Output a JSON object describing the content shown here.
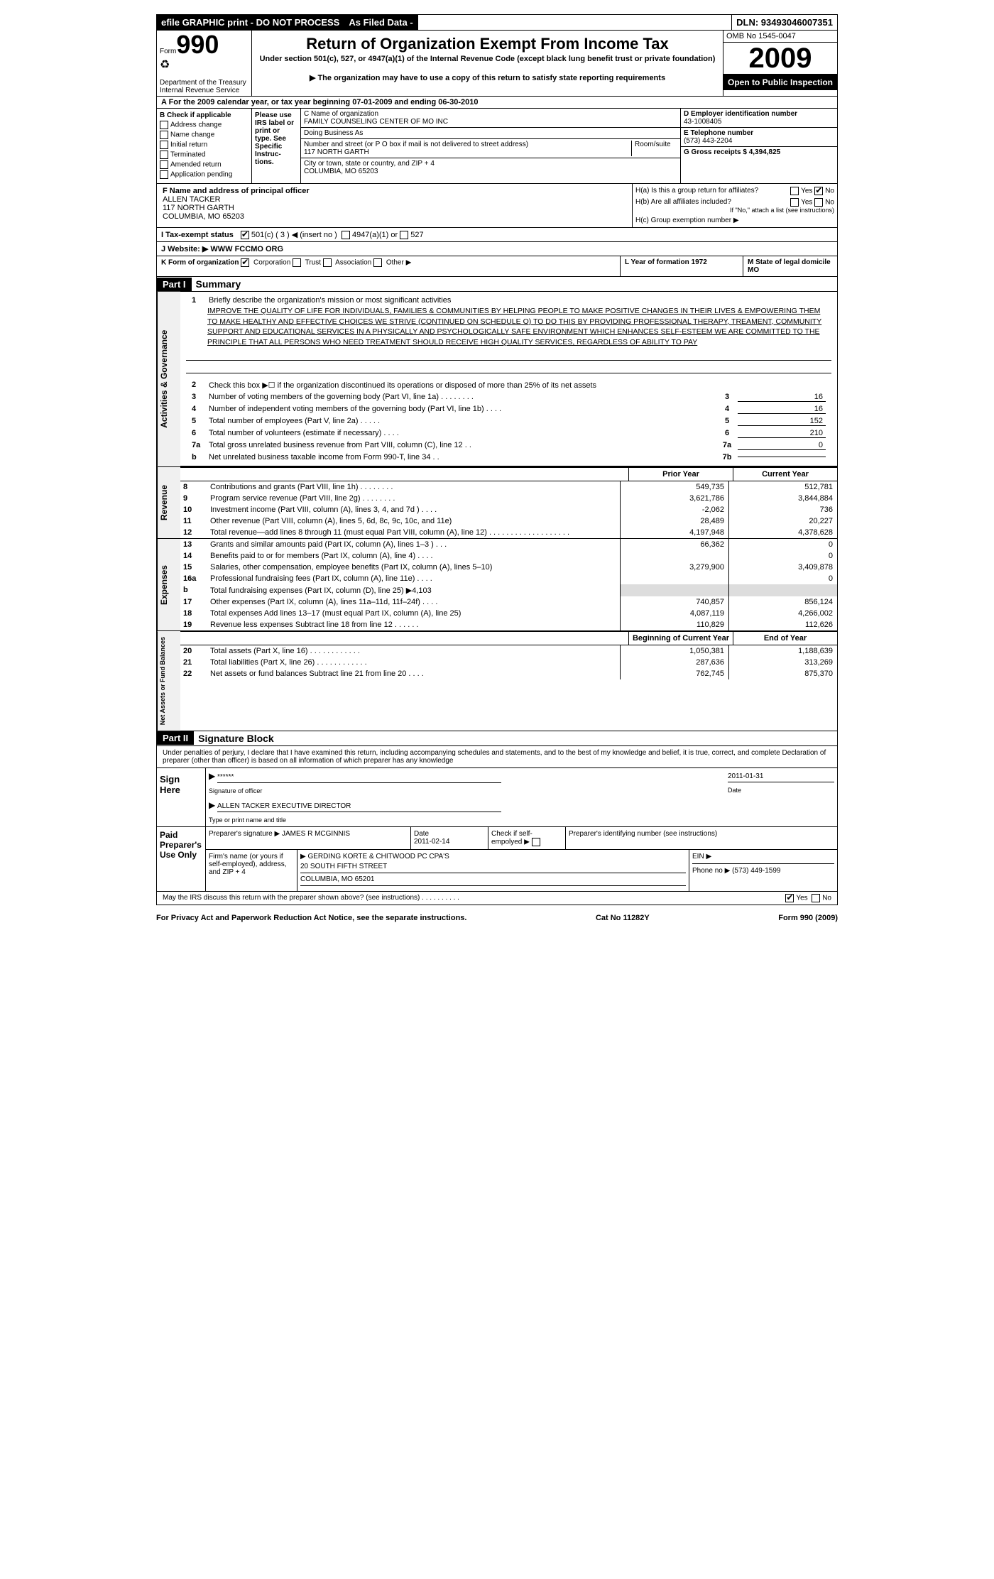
{
  "topbar": {
    "efile": "efile GRAPHIC print - DO NOT PROCESS",
    "asfiled": "As Filed Data -",
    "dln": "DLN: 93493046007351"
  },
  "header": {
    "form_word": "Form",
    "form_num": "990",
    "dept": "Department of the Treasury",
    "irs": "Internal Revenue Service",
    "title": "Return of Organization Exempt From Income Tax",
    "subtitle": "Under section 501(c), 527, or 4947(a)(1) of the Internal Revenue Code (except black lung benefit trust or private foundation)",
    "note": "▶ The organization may have to use a copy of this return to satisfy state reporting requirements",
    "omb": "OMB No 1545-0047",
    "year": "2009",
    "open": "Open to Public Inspection"
  },
  "row_a": "A  For the 2009 calendar year, or tax year beginning 07-01-2009    and ending 06-30-2010",
  "section_b": {
    "title": "B Check if applicable",
    "items": [
      "Address change",
      "Name change",
      "Initial return",
      "Terminated",
      "Amended return",
      "Application pending"
    ]
  },
  "please": "Please use IRS label or print or type. See Specific Instruc-tions.",
  "section_c": {
    "name_label": "C Name of organization",
    "name": "FAMILY COUNSELING CENTER OF MO INC",
    "dba_label": "Doing Business As",
    "street_label": "Number and street (or P O  box if mail is not delivered to street address)",
    "room_label": "Room/suite",
    "street": "117 NORTH GARTH",
    "city_label": "City or town, state or country, and ZIP + 4",
    "city": "COLUMBIA, MO  65203"
  },
  "section_d": {
    "ein_label": "D Employer identification number",
    "ein": "43-1008405",
    "phone_label": "E Telephone number",
    "phone": "(573) 443-2204",
    "gross_label": "G Gross receipts $ 4,394,825"
  },
  "section_f": {
    "label": "F   Name and address of principal officer",
    "name": "ALLEN TACKER",
    "street": "117 NORTH GARTH",
    "city": "COLUMBIA, MO  65203"
  },
  "section_h": {
    "ha": "H(a)  Is this a group return for affiliates?",
    "hb": "H(b)  Are all affiliates included?",
    "hb_note": "If \"No,\" attach a list  (see instructions)",
    "hc": "H(c)   Group exemption number ▶"
  },
  "line_i": {
    "label": "I   Tax-exempt status",
    "c501": "501(c) ( 3 ) ◀ (insert no )",
    "c4947": "4947(a)(1) or",
    "c527": "527"
  },
  "line_j": "J   Website: ▶ WWW FCCMO ORG",
  "line_k": {
    "k": "K Form of organization",
    "corp": "Corporation",
    "trust": "Trust",
    "assoc": "Association",
    "other": "Other ▶",
    "l": "L Year of formation  1972",
    "m": "M State of legal domicile MO"
  },
  "part1": {
    "label": "Part I",
    "title": "Summary"
  },
  "governance": {
    "side": "Activities & Governance",
    "line1_label": "Briefly describe the organization's mission or most significant activities",
    "mission": "IMPROVE THE QUALITY OF LIFE FOR INDIVIDUALS, FAMILIES & COMMUNITIES BY HELPING PEOPLE TO MAKE POSITIVE CHANGES IN THEIR LIVES & EMPOWERING THEM TO MAKE HEALTHY AND EFFECTIVE CHOICES  WE STRIVE (CONTINUED ON SCHEDULE O) TO DO THIS BY PROVIDING PROFESSIONAL THERAPY, TREAMENT, COMMUNITY SUPPORT AND EDUCATIONAL SERVICES IN A PHYSICALLY AND PSYCHOLOGICALLY SAFE ENVIRONMENT WHICH ENHANCES SELF-ESTEEM  WE ARE COMMITTED TO THE PRINCIPLE THAT ALL PERSONS WHO NEED TREATMENT SHOULD RECEIVE HIGH QUALITY SERVICES, REGARDLESS OF ABILITY TO PAY",
    "line2": "Check this box ▶☐ if the organization discontinued its operations or disposed of more than 25% of its net assets",
    "lines": [
      {
        "n": "3",
        "t": "Number of voting members of the governing body (Part VI, line 1a)  .  .  .  .  .  .  .  .",
        "b": "3",
        "v": "16"
      },
      {
        "n": "4",
        "t": "Number of independent voting members of the governing body (Part VI, line 1b)  .  .  .  .",
        "b": "4",
        "v": "16"
      },
      {
        "n": "5",
        "t": "Total number of employees (Part V, line 2a)  .  .  .  .  .",
        "b": "5",
        "v": "152"
      },
      {
        "n": "6",
        "t": "Total number of volunteers (estimate if necessary)  .  .  .  .",
        "b": "6",
        "v": "210"
      },
      {
        "n": "7a",
        "t": "Total gross unrelated business revenue from Part VIII, column (C), line 12  .  .",
        "b": "7a",
        "v": "0"
      },
      {
        "n": "b",
        "t": "Net unrelated business taxable income from Form 990-T, line 34  .  .",
        "b": "7b",
        "v": ""
      }
    ]
  },
  "col_headers": {
    "prior": "Prior Year",
    "current": "Current Year"
  },
  "revenue": {
    "side": "Revenue",
    "lines": [
      {
        "n": "8",
        "t": "Contributions and grants (Part VIII, line 1h)  .  .  .  .  .  .  .  .",
        "p": "549,735",
        "c": "512,781"
      },
      {
        "n": "9",
        "t": "Program service revenue (Part VIII, line 2g)  .  .  .  .  .  .  .  .",
        "p": "3,621,786",
        "c": "3,844,884"
      },
      {
        "n": "10",
        "t": "Investment income (Part VIII, column (A), lines 3, 4, and 7d )  .  .  .  .",
        "p": "-2,062",
        "c": "736"
      },
      {
        "n": "11",
        "t": "Other revenue (Part VIII, column (A), lines 5, 6d, 8c, 9c, 10c, and 11e)",
        "p": "28,489",
        "c": "20,227"
      },
      {
        "n": "12",
        "t": "Total revenue—add lines 8 through 11 (must equal Part VIII, column (A), line 12) .  .  .  .  .  .  .  .  .  .  .  .  .  .  .  .  .  .  .",
        "p": "4,197,948",
        "c": "4,378,628"
      }
    ]
  },
  "expenses": {
    "side": "Expenses",
    "lines": [
      {
        "n": "13",
        "t": "Grants and similar amounts paid (Part IX, column (A), lines 1–3 )  .  .  .",
        "p": "66,362",
        "c": "0"
      },
      {
        "n": "14",
        "t": "Benefits paid to or for members (Part IX, column (A), line 4)  .  .  .  .",
        "p": "",
        "c": "0"
      },
      {
        "n": "15",
        "t": "Salaries, other compensation, employee benefits (Part IX, column (A), lines 5–10)",
        "p": "3,279,900",
        "c": "3,409,878"
      },
      {
        "n": "16a",
        "t": "Professional fundraising fees (Part IX, column (A), line 11e)  .  .  .  .",
        "p": "",
        "c": "0"
      },
      {
        "n": "b",
        "t": "Total fundraising expenses (Part IX, column (D), line 25) ▶4,103",
        "p": "grey",
        "c": "grey"
      },
      {
        "n": "17",
        "t": "Other expenses (Part IX, column (A), lines 11a–11d, 11f–24f)  .  .  .  .",
        "p": "740,857",
        "c": "856,124"
      },
      {
        "n": "18",
        "t": "Total expenses  Add lines 13–17 (must equal Part IX, column (A), line 25)",
        "p": "4,087,119",
        "c": "4,266,002"
      },
      {
        "n": "19",
        "t": "Revenue less expenses  Subtract line 18 from line 12 .  .  .  .  .  .",
        "p": "110,829",
        "c": "112,626"
      }
    ]
  },
  "col_headers2": {
    "begin": "Beginning of Current Year",
    "end": "End of Year"
  },
  "netassets": {
    "side": "Net Assets or Fund Balances",
    "lines": [
      {
        "n": "20",
        "t": "Total assets (Part X, line 16)  .  .  .  .  .  .  .  .  .  .  .  .",
        "p": "1,050,381",
        "c": "1,188,639"
      },
      {
        "n": "21",
        "t": "Total liabilities (Part X, line 26)  .  .  .  .  .  .  .  .  .  .  .  .",
        "p": "287,636",
        "c": "313,269"
      },
      {
        "n": "22",
        "t": "Net assets or fund balances  Subtract line 21 from line 20  .  .  .  .",
        "p": "762,745",
        "c": "875,370"
      }
    ]
  },
  "part2": {
    "label": "Part II",
    "title": "Signature Block",
    "perjury": "Under penalties of perjury, I declare that I have examined this return, including accompanying schedules and statements, and to the best of my knowledge and belief, it is true, correct, and complete  Declaration of preparer (other than officer) is based on all information of which preparer has any knowledge"
  },
  "sign": {
    "label": "Sign Here",
    "stars": "******",
    "sig_label": "Signature of officer",
    "date": "2011-01-31",
    "date_label": "Date",
    "name": "ALLEN TACKER  EXECUTIVE DIRECTOR",
    "name_label": "Type or print name and title"
  },
  "preparer": {
    "label": "Paid Preparer's Use Only",
    "sig_label": "Preparer's signature",
    "name": "JAMES R MCGINNIS",
    "date_label": "Date",
    "date": "2011-02-14",
    "check_label": "Check if self-empolyed ▶",
    "ptin_label": "Preparer's identifying number (see instructions)",
    "firm_label": "Firm's name (or yours if self-employed), address, and ZIP + 4",
    "firm": "GERDING KORTE & CHITWOOD PC CPA'S",
    "firm_addr": "20 SOUTH FIFTH STREET",
    "firm_city": "COLUMBIA, MO  65201",
    "ein_label": "EIN ▶",
    "phone_label": "Phone no  ▶  (573) 449-1599"
  },
  "discuss": "May the IRS discuss this return with the preparer shown above? (see instructions)  .  .  .  .  .  .  .  .  .  .",
  "footer": {
    "privacy": "For Privacy Act and Paperwork Reduction Act Notice, see the separate instructions.",
    "cat": "Cat No 11282Y",
    "form": "Form 990 (2009)"
  },
  "yes": "Yes",
  "no": "No"
}
